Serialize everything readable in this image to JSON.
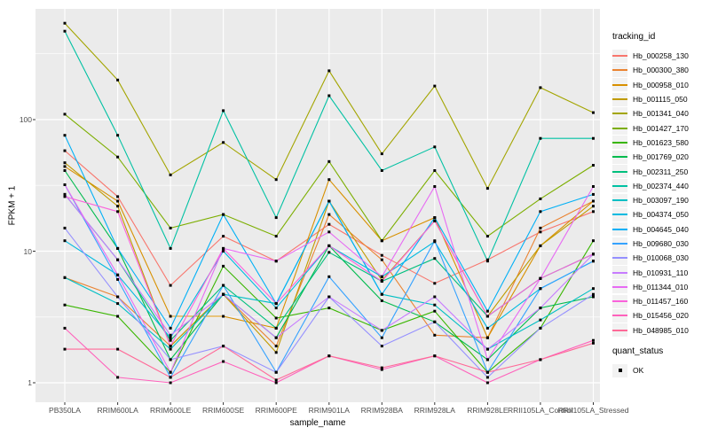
{
  "chart_data": {
    "type": "line",
    "title": "",
    "xlabel": "sample_name",
    "ylabel": "FPKM + 1",
    "y_scale": "log10",
    "grid": true,
    "panel_bg": "#EBEBEB",
    "grid_color": "#FFFFFF",
    "tick_color": "#333333",
    "marker": {
      "shape": "square",
      "color": "#000000",
      "size": 3
    },
    "y_ticks": [
      1,
      10,
      100
    ],
    "y_tick_labels": [
      "1",
      "10",
      "100"
    ],
    "y_minor_ticks": [
      3.162,
      31.623,
      316.228
    ],
    "ylim_log10": [
      -0.148,
      2.84
    ],
    "categories": [
      "PB350LA",
      "RRIM600LA",
      "RRIM600LE",
      "RRIM600SE",
      "RRIM600PE",
      "RRIM901LA",
      "RRIM928BA",
      "RRIM928LA",
      "RRIM928LE",
      "RRII105LA_Control",
      "RRII105LA_Stressed"
    ],
    "legend": {
      "title": "tracking_id",
      "position": "right"
    },
    "legend2": {
      "title": "quant_status",
      "items": [
        {
          "label": "OK",
          "marker": "black-square"
        }
      ]
    },
    "series": [
      {
        "name": "Hb_000258_130",
        "color": "#F8766D",
        "values": [
          58,
          26,
          5.5,
          13,
          8.4,
          16,
          9.3,
          5.7,
          8.6,
          14,
          20
        ]
      },
      {
        "name": "Hb_000300_380",
        "color": "#EA8331",
        "values": [
          6.3,
          4.5,
          1.9,
          4.7,
          1.9,
          19,
          8.6,
          2.3,
          2.2,
          15,
          24
        ]
      },
      {
        "name": "Hb_000958_010",
        "color": "#D89000",
        "values": [
          44,
          24,
          3.2,
          3.2,
          2.6,
          35,
          12,
          18,
          2.2,
          11,
          24
        ]
      },
      {
        "name": "Hb_001115_050",
        "color": "#C09B00",
        "values": [
          47,
          22,
          1.9,
          4.7,
          1.7,
          24,
          6.0,
          17,
          3.2,
          11,
          22
        ]
      },
      {
        "name": "Hb_001341_040",
        "color": "#A3A500",
        "values": [
          540,
          200,
          38,
          67,
          35,
          235,
          55,
          180,
          30,
          175,
          113
        ]
      },
      {
        "name": "Hb_001427_170",
        "color": "#7CAE00",
        "values": [
          110,
          52,
          15,
          19,
          13,
          48,
          12,
          41,
          13,
          25,
          45
        ]
      },
      {
        "name": "Hb_001623_580",
        "color": "#39B600",
        "values": [
          3.9,
          3.2,
          1.2,
          7.7,
          3.1,
          3.7,
          2.5,
          3.5,
          1.2,
          2.6,
          12
        ]
      },
      {
        "name": "Hb_001769_020",
        "color": "#00BB4E",
        "values": [
          41,
          10.5,
          1.5,
          4.7,
          2.2,
          11,
          4.2,
          2.9,
          1.5,
          3.7,
          4.5
        ]
      },
      {
        "name": "Hb_002311_250",
        "color": "#00BF7D",
        "values": [
          27,
          8.6,
          2.1,
          5.5,
          2.6,
          9.8,
          5.9,
          8.8,
          3.2,
          6.2,
          9.5
        ]
      },
      {
        "name": "Hb_002374_440",
        "color": "#00C1A3",
        "values": [
          470,
          76,
          10.5,
          117,
          18,
          152,
          41,
          62,
          8.4,
          72,
          72
        ]
      },
      {
        "name": "Hb_003097_190",
        "color": "#00BFC4",
        "values": [
          6.3,
          4.0,
          1.8,
          4.7,
          4.0,
          24,
          4.7,
          3.9,
          1.8,
          3.0,
          5.2
        ]
      },
      {
        "name": "Hb_004374_050",
        "color": "#00BAE0",
        "values": [
          12,
          6.6,
          2.2,
          10,
          3.7,
          11,
          6.4,
          11.8,
          2.6,
          5.2,
          8.4
        ]
      },
      {
        "name": "Hb_004645_040",
        "color": "#00B0F6",
        "values": [
          76,
          10.5,
          2.6,
          19,
          4.0,
          24,
          4.7,
          18,
          3.5,
          20,
          27
        ]
      },
      {
        "name": "Hb_009680_030",
        "color": "#35A2FF",
        "values": [
          32,
          6.1,
          1.1,
          5.5,
          1.2,
          6.4,
          2.2,
          12,
          1.2,
          5.2,
          8.4
        ]
      },
      {
        "name": "Hb_010068_030",
        "color": "#9590FF",
        "values": [
          15,
          4.5,
          1.5,
          1.9,
          1.2,
          4.5,
          1.9,
          2.9,
          1.1,
          2.6,
          4.7
        ]
      },
      {
        "name": "Hb_010931_110",
        "color": "#C77CFF",
        "values": [
          27,
          8.6,
          2.3,
          4.7,
          2.2,
          4.5,
          2.5,
          4.5,
          1.8,
          3.7,
          9.5
        ]
      },
      {
        "name": "Hb_011344_010",
        "color": "#E76BF3",
        "values": [
          32,
          6.6,
          1.2,
          10.5,
          8.4,
          14,
          6.4,
          31,
          1.5,
          6.2,
          31
        ]
      },
      {
        "name": "Hb_011457_160",
        "color": "#FA62DB",
        "values": [
          26,
          20,
          1.9,
          10.5,
          4.0,
          11,
          5.9,
          17,
          3.2,
          6.2,
          9.5
        ]
      },
      {
        "name": "Hb_015456_020",
        "color": "#FF62BC",
        "values": [
          2.6,
          1.1,
          1.0,
          1.45,
          1.0,
          1.6,
          1.26,
          1.6,
          1.0,
          1.5,
          2.1
        ]
      },
      {
        "name": "Hb_048985_010",
        "color": "#FF6A98",
        "values": [
          1.8,
          1.8,
          1.1,
          1.9,
          1.05,
          1.6,
          1.3,
          1.6,
          1.2,
          1.5,
          2.0
        ]
      }
    ]
  }
}
